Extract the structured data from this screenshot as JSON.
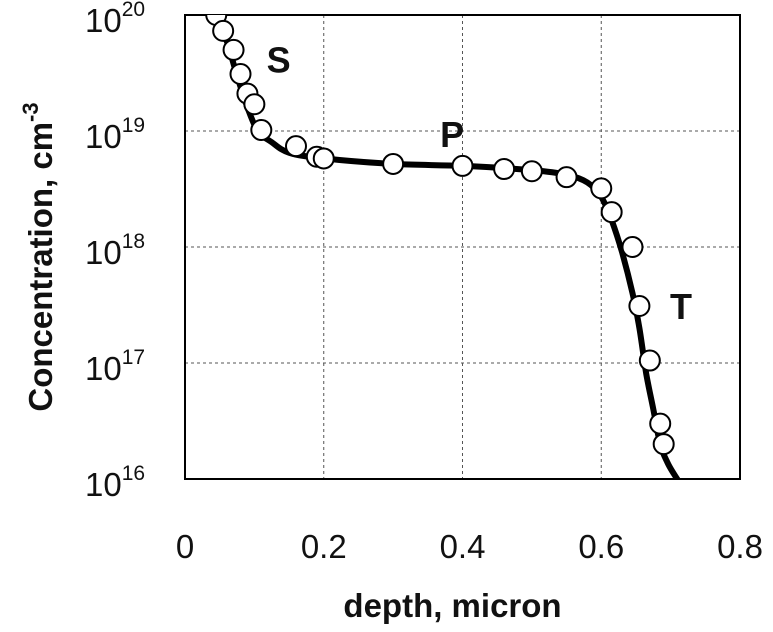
{
  "chart_data": {
    "type": "scatter",
    "xlabel": "depth, micron",
    "ylabel": "Concentration, cm",
    "ylabel_superscript": "-3",
    "xlim": [
      0,
      0.8
    ],
    "ylim": [
      1e+16,
      1e+20
    ],
    "y_scale": "log",
    "grid": true,
    "x_ticks": [
      "0",
      "0.2",
      "0.4",
      "0.6",
      "0.8"
    ],
    "y_ticks": [
      {
        "base": "10",
        "exp": "16"
      },
      {
        "base": "10",
        "exp": "17"
      },
      {
        "base": "10",
        "exp": "18"
      },
      {
        "base": "10",
        "exp": "19"
      },
      {
        "base": "10",
        "exp": "20"
      }
    ],
    "annotations": [
      {
        "text": "S",
        "x": 0.135,
        "y": 3.2e+19
      },
      {
        "text": "P",
        "x": 0.385,
        "y": 7.3e+18
      },
      {
        "text": "T",
        "x": 0.715,
        "y": 2.4e+17
      }
    ],
    "series": [
      {
        "style": "line",
        "x": [
          0.045,
          0.06,
          0.075,
          0.09,
          0.105,
          0.125,
          0.15,
          0.2,
          0.3,
          0.4,
          0.5,
          0.55,
          0.58,
          0.6,
          0.615,
          0.63,
          0.645,
          0.655,
          0.665,
          0.675,
          0.685,
          0.695,
          0.705,
          0.72
        ],
        "y": [
          1e+20,
          6e+19,
          3e+19,
          1.6e+19,
          1e+19,
          8e+18,
          6.5e+18,
          5.8e+18,
          5.2e+18,
          5e+18,
          4.6e+18,
          4.2e+18,
          3.6e+18,
          2.7e+18,
          1.7e+18,
          9e+17,
          4e+17,
          2e+17,
          8e+16,
          4e+16,
          2e+16,
          1.4e+16,
          1.1e+16,
          8000000000000000.0
        ]
      },
      {
        "style": "marker",
        "x": [
          0.045,
          0.055,
          0.07,
          0.08,
          0.09,
          0.1,
          0.11,
          0.16,
          0.19,
          0.2,
          0.3,
          0.4,
          0.46,
          0.5,
          0.55,
          0.6,
          0.615,
          0.645,
          0.655,
          0.67,
          0.685,
          0.69
        ],
        "y": [
          1e+20,
          7.3e+19,
          5e+19,
          3.1e+19,
          2.1e+19,
          1.7e+19,
          1.02e+19,
          7.4e+18,
          6e+18,
          5.8e+18,
          5.2e+18,
          5e+18,
          4.7e+18,
          4.5e+18,
          4e+18,
          3.2e+18,
          2e+18,
          1e+18,
          3.1e+17,
          1.05e+17,
          3e+16,
          2e+16
        ]
      }
    ]
  }
}
